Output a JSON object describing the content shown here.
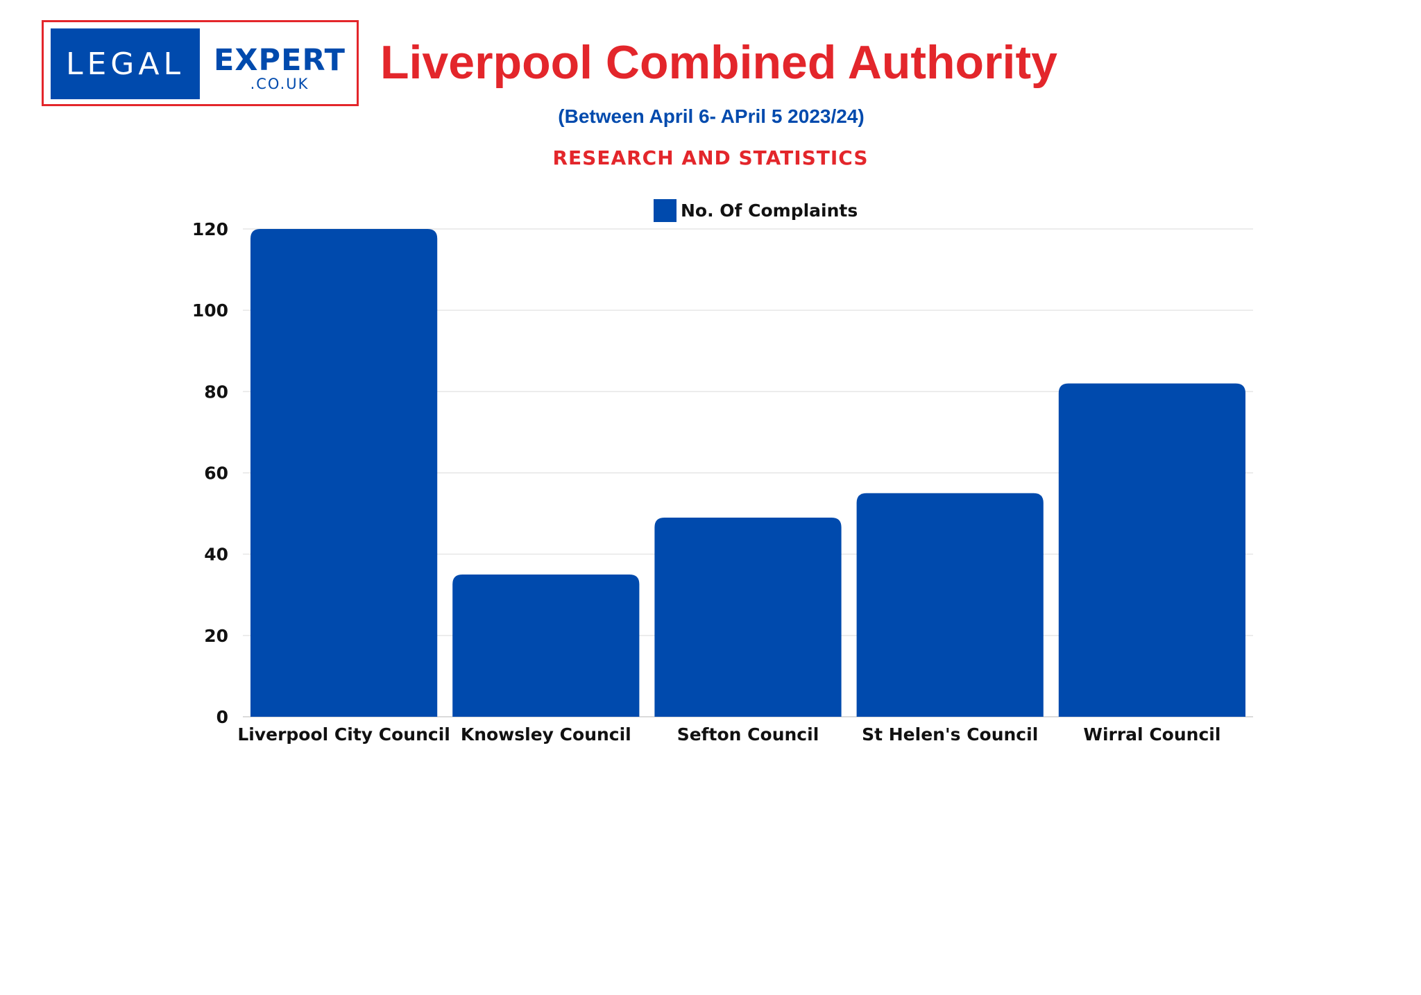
{
  "logo": {
    "left_text": "LEGAL",
    "right_text": "EXPERT",
    "domain_text": ".CO.UK"
  },
  "header": {
    "title": "Liverpool Combined Authority",
    "subtitle": "(Between April 6- APril 5 2023/24)",
    "section_label": "RESEARCH AND STATISTICS"
  },
  "colors": {
    "bar": "#004aad",
    "title": "#e3262b",
    "subtitle": "#004aad",
    "grid": "#e6e6e6"
  },
  "chart_data": {
    "type": "bar",
    "title": "",
    "xlabel": "",
    "ylabel": "",
    "categories": [
      "Liverpool City Council",
      "Knowsley Council",
      "Sefton Council",
      "St Helen's Council",
      "Wirral Council"
    ],
    "series": [
      {
        "name": "No. Of Complaints",
        "values": [
          120,
          35,
          49,
          55,
          82
        ]
      }
    ],
    "ylim": [
      0,
      120
    ],
    "yticks": [
      0,
      20,
      40,
      60,
      80,
      100,
      120
    ],
    "grid": true,
    "legend": "top-center"
  }
}
